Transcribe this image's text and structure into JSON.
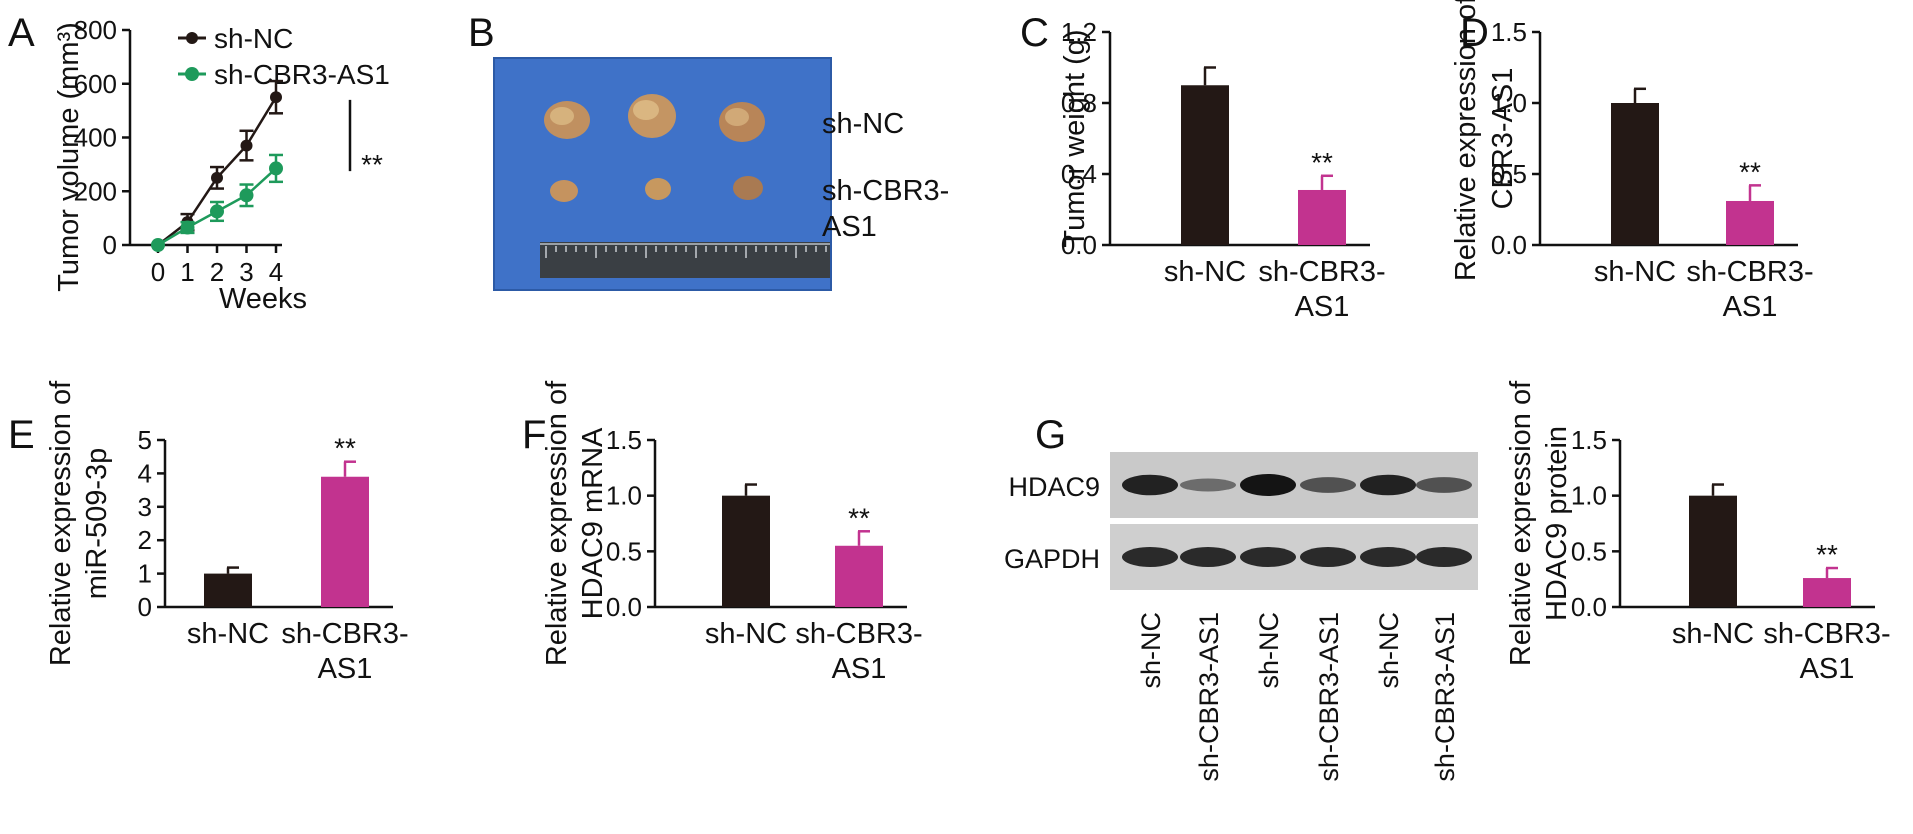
{
  "colors": {
    "nc": "#231815",
    "sh": "#c2338f",
    "line_nc": "#231815",
    "line_sh": "#1e9a5b",
    "photo_bg": "#3f72c8"
  },
  "panels": {
    "A": "A",
    "B": "B",
    "C": "C",
    "D": "D",
    "E": "E",
    "F": "F",
    "G": "G"
  },
  "photo": {
    "label_nc": "sh-NC",
    "label_sh_line1": "sh-CBR3-",
    "label_sh_line2": "AS1"
  },
  "blot": {
    "rows": [
      {
        "label": "HDAC9",
        "intensity": [
          0.9,
          0.35,
          1.0,
          0.55,
          0.9,
          0.55
        ]
      },
      {
        "label": "GAPDH",
        "intensity": [
          0.85,
          0.85,
          0.85,
          0.85,
          0.85,
          0.85
        ]
      }
    ],
    "lanes": [
      "sh-NC",
      "sh-CBR3-AS1",
      "sh-NC",
      "sh-CBR3-AS1",
      "sh-NC",
      "sh-CBR3-AS1"
    ]
  },
  "chart_data": [
    {
      "id": "A",
      "type": "line",
      "xlabel": "Weeks",
      "ylabel": "Tumor volume (mm³)",
      "ylim": [
        0,
        800
      ],
      "yticks": [
        "0",
        "200",
        "400",
        "600",
        "800"
      ],
      "x": [
        0,
        1,
        2,
        3,
        4
      ],
      "xticks": [
        "0",
        "1",
        "2",
        "3",
        "4"
      ],
      "series": [
        {
          "name": "sh-NC",
          "values": [
            0,
            85,
            250,
            370,
            550
          ],
          "errors": [
            0,
            30,
            40,
            55,
            60
          ]
        },
        {
          "name": "sh-CBR3-AS1",
          "values": [
            0,
            65,
            125,
            185,
            285
          ],
          "errors": [
            0,
            20,
            35,
            40,
            50
          ]
        }
      ],
      "legend": "top-left",
      "annotation": "**"
    },
    {
      "id": "C",
      "type": "bar",
      "categories": [
        [
          "sh-NC"
        ],
        [
          "sh-CBR3-",
          "AS1"
        ]
      ],
      "values": [
        0.9,
        0.31
      ],
      "errors": [
        0.1,
        0.08
      ],
      "ylim": [
        0,
        1.2
      ],
      "yticks": [
        "0.0",
        "0.4",
        "0.8",
        "1.2"
      ],
      "ylabel": [
        "Tumor weight (g)"
      ],
      "annotation": "**"
    },
    {
      "id": "D",
      "type": "bar",
      "categories": [
        [
          "sh-NC"
        ],
        [
          "sh-CBR3-",
          "AS1"
        ]
      ],
      "values": [
        1.0,
        0.31
      ],
      "errors": [
        0.1,
        0.11
      ],
      "ylim": [
        0,
        1.5
      ],
      "yticks": [
        "0.0",
        "0.5",
        "1.0",
        "1.5"
      ],
      "ylabel": [
        "Relative expression of",
        "CBR3-AS1"
      ],
      "annotation": "**"
    },
    {
      "id": "E",
      "type": "bar",
      "categories": [
        [
          "sh-NC"
        ],
        [
          "sh-CBR3-",
          "AS1"
        ]
      ],
      "values": [
        1.0,
        3.9
      ],
      "errors": [
        0.18,
        0.45
      ],
      "ylim": [
        0,
        5
      ],
      "yticks": [
        "0",
        "1",
        "2",
        "3",
        "4",
        "5"
      ],
      "ylabel": [
        "Relative expression of",
        "miR-509-3p"
      ],
      "annotation": "**"
    },
    {
      "id": "F",
      "type": "bar",
      "categories": [
        [
          "sh-NC"
        ],
        [
          "sh-CBR3-",
          "AS1"
        ]
      ],
      "values": [
        1.0,
        0.55
      ],
      "errors": [
        0.1,
        0.13
      ],
      "ylim": [
        0,
        1.5
      ],
      "yticks": [
        "0.0",
        "0.5",
        "1.0",
        "1.5"
      ],
      "ylabel": [
        "Relative expression of",
        "HDAC9 mRNA"
      ],
      "annotation": "**"
    },
    {
      "id": "G",
      "type": "bar",
      "categories": [
        [
          "sh-NC"
        ],
        [
          "sh-CBR3-",
          "AS1"
        ]
      ],
      "values": [
        1.0,
        0.26
      ],
      "errors": [
        0.1,
        0.09
      ],
      "ylim": [
        0,
        1.5
      ],
      "yticks": [
        "0.0",
        "0.5",
        "1.0",
        "1.5"
      ],
      "ylabel": [
        "Relative expression of",
        "HDAC9 protein"
      ],
      "annotation": "**"
    }
  ]
}
